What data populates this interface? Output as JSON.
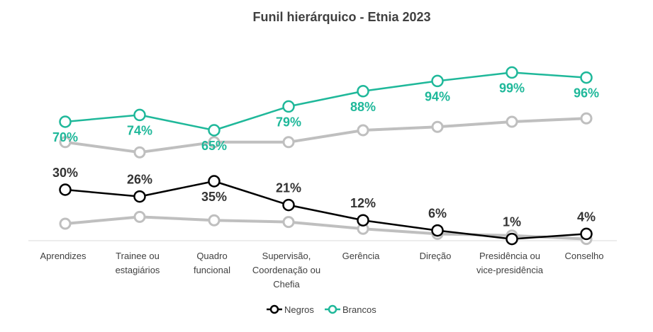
{
  "chart_data": {
    "type": "line",
    "title": "Funil hierárquico - Etnia 2023",
    "categories": [
      [
        "Aprendizes"
      ],
      [
        "Trainee ou",
        "estagiários"
      ],
      [
        "Quadro",
        "funcional"
      ],
      [
        "Supervisão,",
        "Coordenação ou",
        "Chefia"
      ],
      [
        "Gerência"
      ],
      [
        "Direção"
      ],
      [
        "Presidência ou",
        "vice-presidência"
      ],
      [
        "Conselho"
      ]
    ],
    "series": [
      {
        "name": "Negros",
        "values": [
          30,
          26,
          35,
          21,
          12,
          6,
          1,
          4
        ],
        "labels": [
          "30%",
          "26%",
          "35%",
          "21%",
          "12%",
          "6%",
          "1%",
          "4%"
        ],
        "color": "#000000"
      },
      {
        "name": "Brancos",
        "values": [
          70,
          74,
          65,
          79,
          88,
          94,
          99,
          96
        ],
        "labels": [
          "70%",
          "74%",
          "65%",
          "79%",
          "88%",
          "94%",
          "99%",
          "96%"
        ],
        "color": "#1fb89a"
      }
    ],
    "comparison_color": "#bfbfbf",
    "comparison_series": [
      [
        10,
        14,
        12,
        11,
        7,
        4,
        3,
        1
      ],
      [
        58,
        52,
        58,
        58,
        65,
        67,
        70,
        72
      ]
    ],
    "ylim": [
      0,
      100
    ],
    "grid": false,
    "legend": "bottom-center"
  }
}
